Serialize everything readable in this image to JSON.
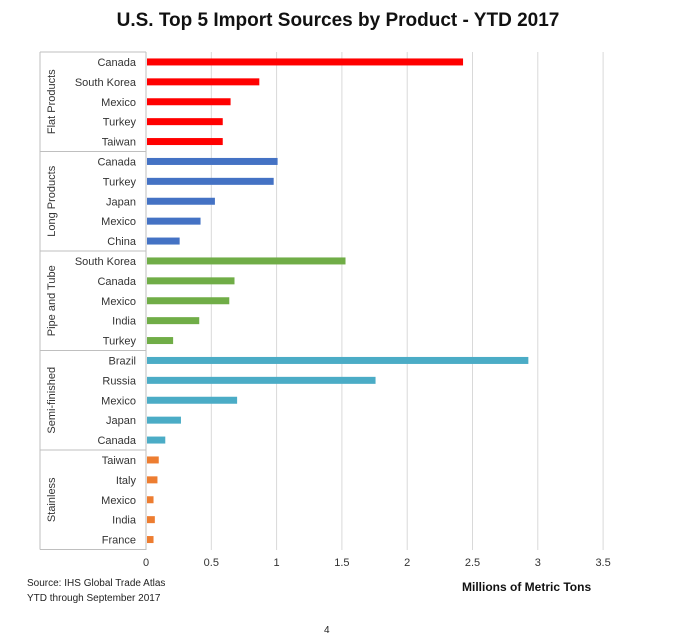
{
  "chart_data": {
    "type": "bar",
    "orientation": "horizontal",
    "title": "U.S. Top 5 Import Sources by Product - YTD 2017",
    "xlabel": "Millions of Metric Tons",
    "xlim": [
      0,
      3.5
    ],
    "xticks": [
      "0",
      "0.5",
      "1",
      "1.5",
      "2",
      "2.5",
      "3",
      "3.5"
    ],
    "grid": true,
    "groups": [
      {
        "name": "Flat Products",
        "color": "#ff0000",
        "categories": [
          "Canada",
          "South Korea",
          "Mexico",
          "Turkey",
          "Taiwan"
        ],
        "values": [
          2.42,
          0.86,
          0.64,
          0.58,
          0.58
        ]
      },
      {
        "name": "Long Products",
        "color": "#4472c4",
        "categories": [
          "Canada",
          "Turkey",
          "Japan",
          "Mexico",
          "China"
        ],
        "values": [
          1.0,
          0.97,
          0.52,
          0.41,
          0.25
        ]
      },
      {
        "name": "Pipe and Tube",
        "color": "#70ad47",
        "categories": [
          "South Korea",
          "Canada",
          "Mexico",
          "India",
          "Turkey"
        ],
        "values": [
          1.52,
          0.67,
          0.63,
          0.4,
          0.2
        ]
      },
      {
        "name": "Semi-finished",
        "color": "#4bacc6",
        "categories": [
          "Brazil",
          "Russia",
          "Mexico",
          "Japan",
          "Canada"
        ],
        "values": [
          2.92,
          1.75,
          0.69,
          0.26,
          0.14
        ]
      },
      {
        "name": "Stainless",
        "color": "#ed7d31",
        "categories": [
          "Taiwan",
          "Italy",
          "Mexico",
          "India",
          "France"
        ],
        "values": [
          0.09,
          0.08,
          0.05,
          0.06,
          0.05
        ]
      }
    ]
  },
  "source": "Source: IHS Global Trade Atlas",
  "period": "YTD through September 2017",
  "page_number": "4"
}
